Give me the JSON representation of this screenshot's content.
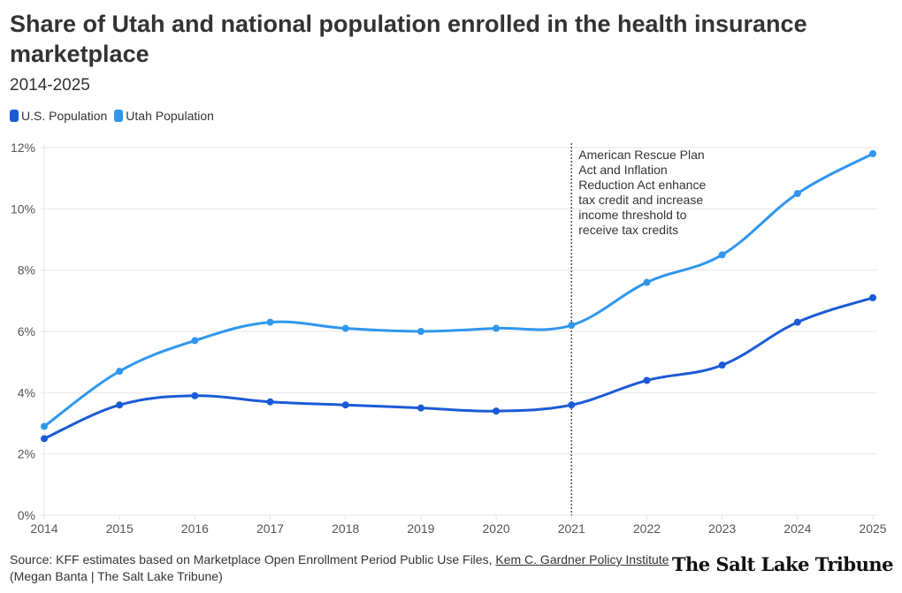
{
  "header": {
    "title": "Share of Utah and national population enrolled in the health insurance marketplace",
    "subtitle": "2014-2025"
  },
  "legend": [
    {
      "label": "U.S. Population",
      "color": "#1b5ad6"
    },
    {
      "label": "Utah Population",
      "color": "#2f96ee"
    }
  ],
  "footer": {
    "source_prefix": "Source: KFF estimates based on Marketplace Open Enrollment Period Public Use Files, ",
    "source_link": "Kem C. Gardner Policy Institute",
    "credit": "(Megan Banta | The Salt Lake Tribune)",
    "logo": "The Salt Lake Tribune"
  },
  "chart_data": {
    "type": "line",
    "title": "Share of Utah and national population enrolled in the health insurance marketplace",
    "subtitle": "2014-2025",
    "xlabel": "",
    "ylabel": "",
    "x": [
      "2014",
      "2015",
      "2016",
      "2017",
      "2018",
      "2019",
      "2020",
      "2021",
      "2022",
      "2023",
      "2024",
      "2025"
    ],
    "ylim": [
      0,
      12
    ],
    "yticks": [
      "0%",
      "2%",
      "4%",
      "6%",
      "8%",
      "10%",
      "12%"
    ],
    "ytick_values": [
      0,
      2,
      4,
      6,
      8,
      10,
      12
    ],
    "grid": true,
    "legend_position": "top-left",
    "series": [
      {
        "name": "U.S. Population",
        "color": "#1b5ad6",
        "values": [
          2.5,
          3.6,
          3.9,
          3.7,
          3.6,
          3.5,
          3.4,
          3.6,
          4.4,
          4.9,
          6.3,
          7.1
        ]
      },
      {
        "name": "Utah Population",
        "color": "#2f96ee",
        "values": [
          2.9,
          4.7,
          5.7,
          6.3,
          6.1,
          6.0,
          6.1,
          6.2,
          7.6,
          8.5,
          10.5,
          11.8
        ]
      }
    ],
    "annotations": [
      {
        "x": "2021",
        "lines": [
          "American Rescue Plan",
          "Act and Inflation",
          "Reduction Act enhance",
          "tax credit and increase",
          "income threshold to",
          "receive tax credits"
        ]
      }
    ]
  }
}
